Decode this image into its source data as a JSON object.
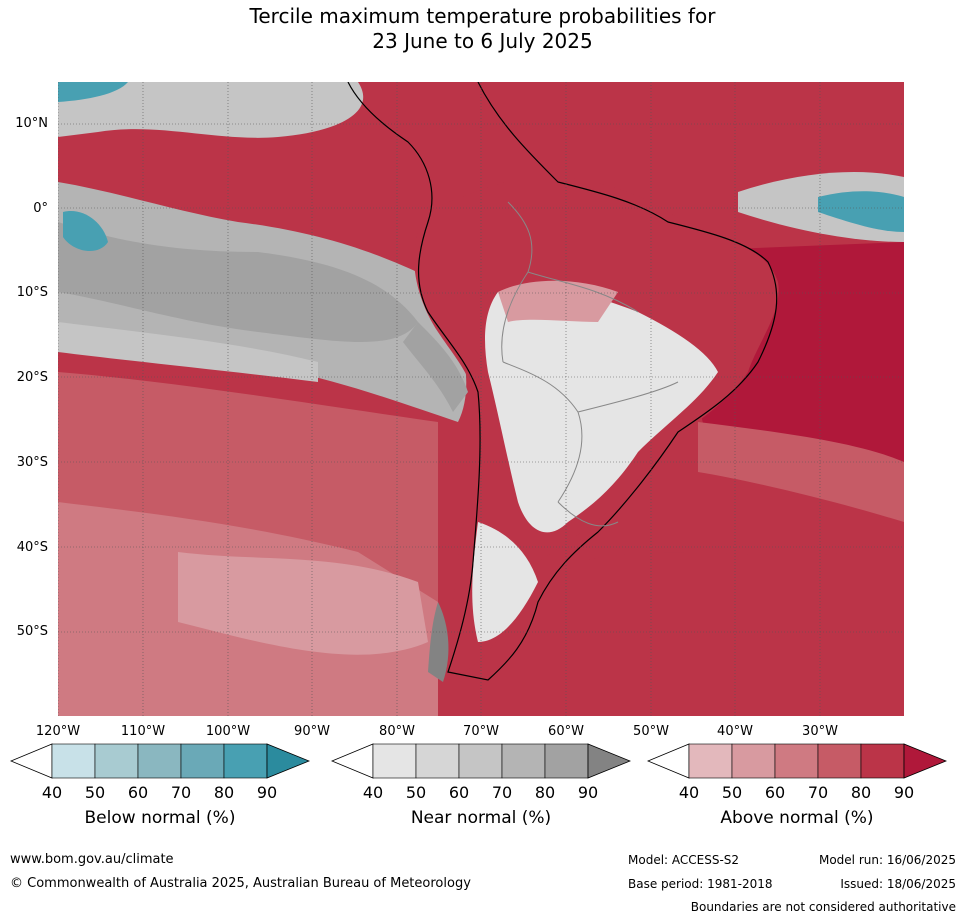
{
  "title_line1": "Tercile maximum temperature probabilities for",
  "title_line2": "23 June to 6 July 2025",
  "lat_labels": [
    "10°N",
    "0°",
    "10°S",
    "20°S",
    "30°S",
    "40°S",
    "50°S"
  ],
  "lon_labels": [
    "120°W",
    "110°W",
    "100°W",
    "90°W",
    "80°W",
    "70°W",
    "60°W",
    "50°W",
    "40°W",
    "30°W"
  ],
  "colorbars": [
    {
      "title": "Below normal (%)",
      "ticks": [
        "40",
        "50",
        "60",
        "70",
        "80",
        "90"
      ],
      "colors": [
        "#ffffff",
        "#c8e1e8",
        "#a8cbd1",
        "#8ab7c0",
        "#6aa9b7",
        "#48a0b2",
        "#2b8b9e"
      ]
    },
    {
      "title": "Near normal (%)",
      "ticks": [
        "40",
        "50",
        "60",
        "70",
        "80",
        "90"
      ],
      "colors": [
        "#ffffff",
        "#e5e5e5",
        "#d6d6d6",
        "#c5c5c5",
        "#b4b4b4",
        "#a2a2a2",
        "#838383"
      ]
    },
    {
      "title": "Above normal (%)",
      "ticks": [
        "40",
        "50",
        "60",
        "70",
        "80",
        "90"
      ],
      "colors": [
        "#ffffff",
        "#e3b8bc",
        "#d89aa0",
        "#cf7a82",
        "#c65b66",
        "#bb3448",
        "#b0183a"
      ]
    }
  ],
  "footer": {
    "url": "www.bom.gov.au/climate",
    "copyright": "© Commonwealth of Australia 2025, Australian Bureau of Meteorology",
    "model": "Model: ACCESS-S2",
    "model_run": "Model run: 16/06/2025",
    "base_period": "Base period: 1981-2018",
    "issued": "Issued: 18/06/2025",
    "disclaimer": "Boundaries are not considered authoritative"
  }
}
